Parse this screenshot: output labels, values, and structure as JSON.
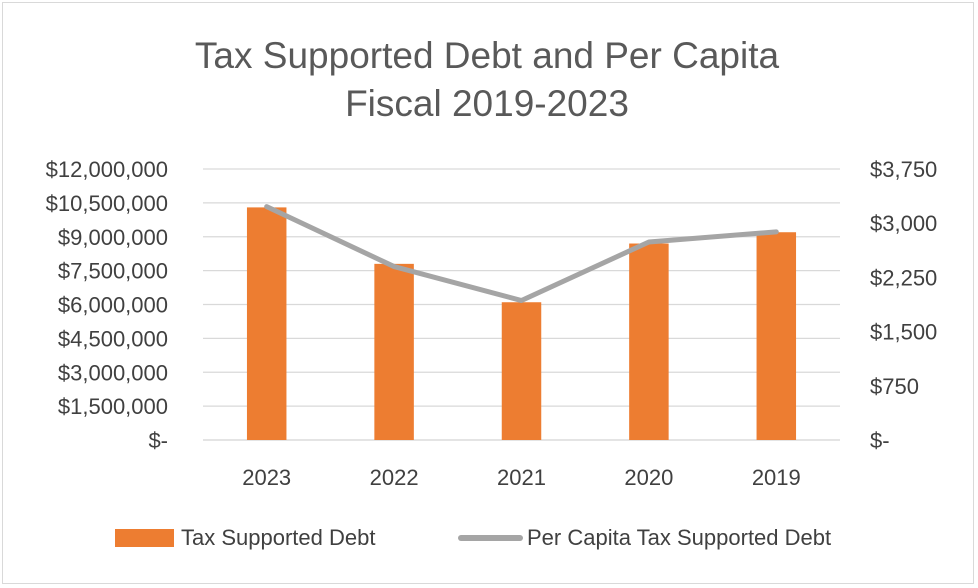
{
  "chart_data": {
    "type": "bar",
    "title": [
      "Tax Supported Debt and Per Capita",
      "Fiscal 2019-2023"
    ],
    "categories": [
      "2023",
      "2022",
      "2021",
      "2020",
      "2019"
    ],
    "series": [
      {
        "name": "Tax Supported Debt",
        "type": "bar",
        "axis": "left",
        "color": "#ED7D31",
        "values": [
          10300000,
          7800000,
          6100000,
          8700000,
          9200000
        ]
      },
      {
        "name": "Per Capita Tax Supported Debt",
        "type": "line",
        "axis": "right",
        "color": "#A5A5A5",
        "values": [
          3230,
          2400,
          1930,
          2740,
          2880
        ]
      }
    ],
    "y_left": {
      "range": [
        0,
        12000000
      ],
      "ticks": [
        0,
        1500000,
        3000000,
        4500000,
        6000000,
        7500000,
        9000000,
        10500000,
        12000000
      ],
      "tick_labels": [
        "$-",
        "$1,500,000",
        "$3,000,000",
        "$4,500,000",
        "$6,000,000",
        "$7,500,000",
        "$9,000,000",
        "$10,500,000",
        "$12,000,000"
      ]
    },
    "y_right": {
      "range": [
        0,
        3750
      ],
      "ticks": [
        0,
        750,
        1500,
        2250,
        3000,
        3750
      ],
      "tick_labels": [
        "$-",
        "$750",
        "$1,500",
        "$2,250",
        "$3,000",
        "$3,750"
      ]
    },
    "grid": true,
    "legend": "bottom",
    "gridline_color": "#d9d9d9"
  }
}
